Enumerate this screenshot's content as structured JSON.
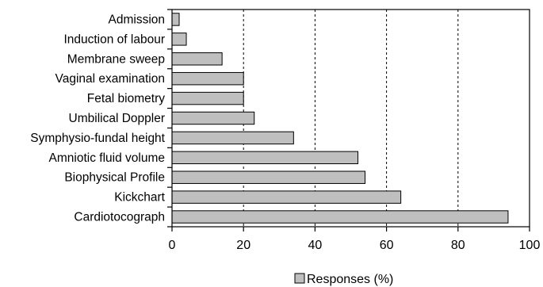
{
  "chart_data": {
    "type": "bar",
    "orientation": "horizontal",
    "categories": [
      "Admission",
      "Induction of labour",
      "Membrane sweep",
      "Vaginal examination",
      "Fetal biometry",
      "Umbilical Doppler",
      "Symphysio-fundal height",
      "Amniotic fluid volume",
      "Biophysical Profile",
      "Kickchart",
      "Cardiotocograph"
    ],
    "series": [
      {
        "name": "Responses (%)",
        "values": [
          2,
          4,
          14,
          20,
          20,
          23,
          34,
          52,
          54,
          64,
          94
        ],
        "color": "#bfbfbf"
      }
    ],
    "xlim": [
      0,
      100
    ],
    "xticks": [
      "0",
      "20",
      "40",
      "60",
      "80",
      "100"
    ],
    "grid": "vertical dashed",
    "legend": "bottom"
  }
}
